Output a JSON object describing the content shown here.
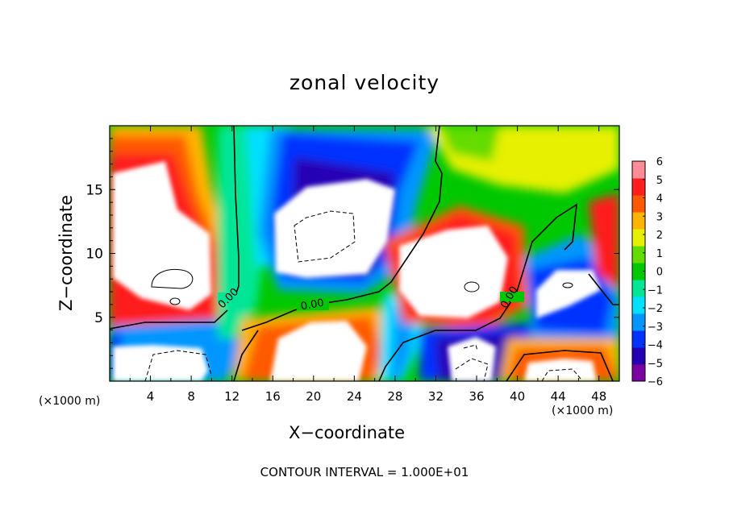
{
  "chart_data": {
    "type": "heatmap",
    "title": "zonal velocity",
    "xlabel": "X−coordinate",
    "ylabel": "Z−coordinate",
    "x_unit": "(×1000 m)",
    "x_ticks": [
      "4",
      "8",
      "12",
      "16",
      "20",
      "24",
      "28",
      "32",
      "36",
      "40",
      "44",
      "48"
    ],
    "y_ticks": [
      "5",
      "10",
      "15"
    ],
    "xlim": [
      0,
      50
    ],
    "ylim": [
      0,
      20
    ],
    "colorbar": {
      "ticks": [
        "6",
        "5",
        "4",
        "3",
        "2",
        "1",
        "0",
        "−1",
        "−2",
        "−3",
        "−4",
        "−5",
        "−6"
      ],
      "range": [
        -6,
        6
      ],
      "colors": [
        "#7a00a0",
        "#2800b4",
        "#0032ff",
        "#0096ff",
        "#00e0ff",
        "#00e696",
        "#00c800",
        "#64dc00",
        "#e6f000",
        "#ffb400",
        "#ff5a00",
        "#ff1e1e",
        "#ff8c96"
      ],
      "saturated_color": "#ffffff"
    },
    "contour_labels": [
      "0.00",
      "0.00",
      "0.00"
    ],
    "contour_interval": "CONTOUR INTERVAL = 1.000E+01"
  }
}
